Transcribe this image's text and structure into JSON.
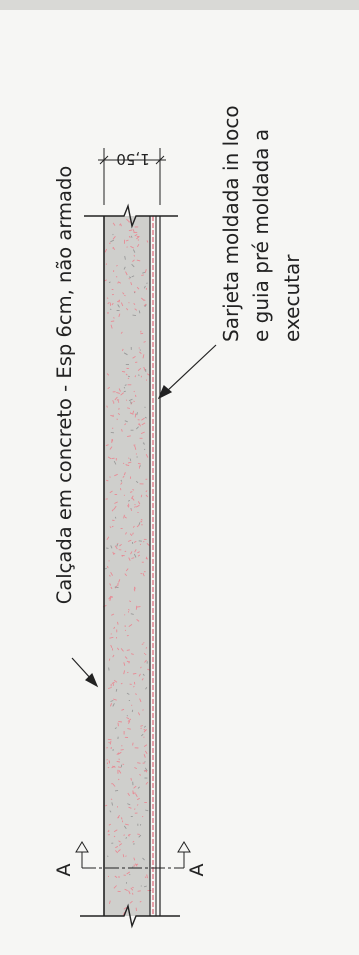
{
  "labels": {
    "sidewalk": "Calçada em concreto - Esp 6cm, não armado",
    "gutter_line1": "Sarjeta moldada in loco",
    "gutter_line2": "e guia pré moldada a",
    "gutter_line3": "executar",
    "dimension": "1,50",
    "section_top": "A",
    "section_bottom": "A"
  },
  "colors": {
    "concrete_fill": "#cfcfcc",
    "concrete_speckle": "#e88a94",
    "gutter_red": "#d6455a",
    "line": "#222222",
    "paper": "#f6f6f4"
  }
}
